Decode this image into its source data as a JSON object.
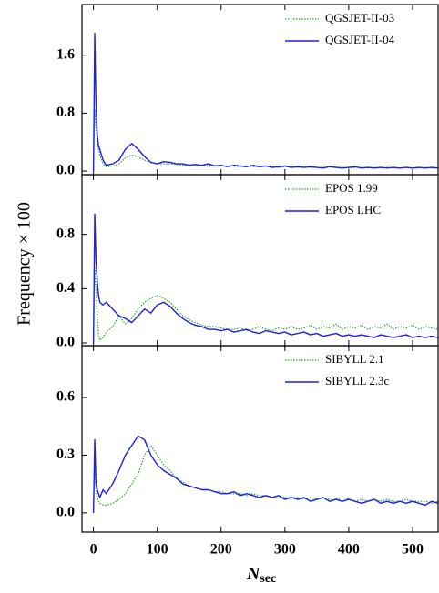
{
  "chart_data": [
    {
      "type": "line",
      "x": [
        0,
        2,
        4,
        6,
        8,
        10,
        15,
        20,
        30,
        40,
        50,
        60,
        70,
        80,
        90,
        100,
        110,
        120,
        130,
        140,
        150,
        160,
        170,
        180,
        190,
        200,
        210,
        220,
        230,
        240,
        250,
        260,
        270,
        280,
        290,
        300,
        310,
        320,
        330,
        340,
        350,
        360,
        370,
        380,
        390,
        400,
        410,
        420,
        430,
        440,
        450,
        460,
        470,
        480,
        490,
        500,
        510,
        520,
        530,
        540
      ],
      "xlim": [
        -18,
        540
      ],
      "ylim": [
        -0.05,
        2.3
      ],
      "yticks": [
        {
          "value": 0,
          "label": "0.0"
        },
        0.8,
        1.6
      ],
      "legend": "upper right",
      "series": [
        {
          "name": "QGSJET-II-03",
          "color": "#2ca02c",
          "style": "dotted",
          "values": [
            0,
            0.85,
            0.6,
            0.4,
            0.3,
            0.22,
            0.1,
            0.06,
            0.07,
            0.1,
            0.18,
            0.22,
            0.2,
            0.15,
            0.12,
            0.1,
            0.1,
            0.1,
            0.09,
            0.08,
            0.09,
            0.08,
            0.08,
            0.07,
            0.08,
            0.07,
            0.07,
            0.07,
            0.06,
            0.07,
            0.06,
            0.06,
            0.07,
            0.06,
            0.05,
            0.06,
            0.06,
            0.05,
            0.06,
            0.05,
            0.05,
            0.05,
            0.06,
            0.05,
            0.05,
            0.04,
            0.05,
            0.05,
            0.04,
            0.05,
            0.04,
            0.05,
            0.04,
            0.04,
            0.05,
            0.04,
            0.04,
            0.05,
            0.04,
            0.04
          ]
        },
        {
          "name": "QGSJET-II-04",
          "color": "#1f1fe0",
          "style": "solid",
          "values": [
            0,
            1.9,
            0.9,
            0.5,
            0.35,
            0.3,
            0.15,
            0.08,
            0.1,
            0.15,
            0.3,
            0.38,
            0.3,
            0.2,
            0.12,
            0.1,
            0.13,
            0.12,
            0.1,
            0.1,
            0.08,
            0.09,
            0.08,
            0.1,
            0.07,
            0.08,
            0.06,
            0.08,
            0.07,
            0.06,
            0.08,
            0.06,
            0.07,
            0.05,
            0.06,
            0.07,
            0.05,
            0.06,
            0.05,
            0.06,
            0.05,
            0.04,
            0.06,
            0.05,
            0.04,
            0.05,
            0.06,
            0.04,
            0.05,
            0.04,
            0.05,
            0.04,
            0.05,
            0.04,
            0.05,
            0.04,
            0.05,
            0.04,
            0.05,
            0.04
          ]
        }
      ]
    },
    {
      "type": "line",
      "ylabel": "Frequency × 100",
      "x": [
        0,
        2,
        4,
        6,
        8,
        10,
        15,
        20,
        30,
        40,
        50,
        60,
        70,
        80,
        90,
        100,
        110,
        120,
        130,
        140,
        150,
        160,
        170,
        180,
        190,
        200,
        210,
        220,
        230,
        240,
        250,
        260,
        270,
        280,
        290,
        300,
        310,
        320,
        330,
        340,
        350,
        360,
        370,
        380,
        390,
        400,
        410,
        420,
        430,
        440,
        450,
        460,
        470,
        480,
        490,
        500,
        510,
        520,
        530,
        540
      ],
      "xlim": [
        -18,
        540
      ],
      "ylim": [
        -0.02,
        1.24
      ],
      "yticks": [
        {
          "value": 0,
          "label": "0.0"
        },
        0.4,
        0.8
      ],
      "legend": "upper right",
      "series": [
        {
          "name": "EPOS 1.99",
          "color": "#2ca02c",
          "style": "dotted",
          "values": [
            0,
            0.55,
            0.4,
            0.2,
            0.05,
            0.02,
            0.04,
            0.08,
            0.12,
            0.2,
            0.14,
            0.18,
            0.25,
            0.3,
            0.33,
            0.35,
            0.33,
            0.3,
            0.25,
            0.2,
            0.17,
            0.15,
            0.13,
            0.12,
            0.12,
            0.11,
            0.1,
            0.1,
            0.11,
            0.09,
            0.1,
            0.12,
            0.1,
            0.09,
            0.11,
            0.1,
            0.12,
            0.1,
            0.11,
            0.13,
            0.1,
            0.12,
            0.11,
            0.14,
            0.1,
            0.12,
            0.11,
            0.13,
            0.1,
            0.12,
            0.11,
            0.14,
            0.1,
            0.12,
            0.11,
            0.13,
            0.1,
            0.12,
            0.11,
            0.1
          ]
        },
        {
          "name": "EPOS LHC",
          "color": "#1f1fe0",
          "style": "solid",
          "values": [
            0,
            0.95,
            0.6,
            0.45,
            0.35,
            0.3,
            0.28,
            0.3,
            0.25,
            0.2,
            0.18,
            0.15,
            0.2,
            0.25,
            0.22,
            0.28,
            0.3,
            0.27,
            0.22,
            0.18,
            0.15,
            0.13,
            0.12,
            0.1,
            0.1,
            0.09,
            0.1,
            0.08,
            0.09,
            0.1,
            0.08,
            0.07,
            0.09,
            0.08,
            0.07,
            0.08,
            0.06,
            0.07,
            0.08,
            0.06,
            0.07,
            0.05,
            0.06,
            0.07,
            0.05,
            0.06,
            0.05,
            0.06,
            0.05,
            0.04,
            0.06,
            0.05,
            0.04,
            0.05,
            0.06,
            0.04,
            0.05,
            0.04,
            0.05,
            0.04
          ]
        }
      ]
    },
    {
      "type": "line",
      "xlabel": "N",
      "xlabel_sub": "sec",
      "x": [
        0,
        2,
        4,
        6,
        8,
        10,
        15,
        20,
        30,
        40,
        50,
        60,
        70,
        80,
        90,
        100,
        110,
        120,
        130,
        140,
        150,
        160,
        170,
        180,
        190,
        200,
        210,
        220,
        230,
        240,
        250,
        260,
        270,
        280,
        290,
        300,
        310,
        320,
        330,
        340,
        350,
        360,
        370,
        380,
        390,
        400,
        410,
        420,
        430,
        440,
        450,
        460,
        470,
        480,
        490,
        500,
        510,
        520,
        530,
        540
      ],
      "xlim": [
        -18,
        540
      ],
      "ylim": [
        -0.1,
        0.87
      ],
      "xticks": [
        0,
        100,
        200,
        300,
        400,
        500
      ],
      "yticks": [
        {
          "value": 0,
          "label": "0.0"
        },
        0.3,
        0.6
      ],
      "legend": "upper right",
      "series": [
        {
          "name": "SIBYLL 2.1",
          "color": "#2ca02c",
          "style": "dotted",
          "values": [
            0,
            0.25,
            0.12,
            0.08,
            0.06,
            0.05,
            0.04,
            0.04,
            0.05,
            0.07,
            0.1,
            0.15,
            0.2,
            0.3,
            0.35,
            0.3,
            0.25,
            0.22,
            0.18,
            0.16,
            0.14,
            0.13,
            0.12,
            0.12,
            0.11,
            0.11,
            0.1,
            0.1,
            0.1,
            0.09,
            0.1,
            0.09,
            0.09,
            0.08,
            0.09,
            0.08,
            0.08,
            0.08,
            0.07,
            0.08,
            0.07,
            0.08,
            0.07,
            0.07,
            0.08,
            0.07,
            0.06,
            0.07,
            0.06,
            0.07,
            0.06,
            0.07,
            0.06,
            0.06,
            0.07,
            0.06,
            0.06,
            0.06,
            0.05,
            0.06
          ]
        },
        {
          "name": "SIBYLL 2.3c",
          "color": "#1f1fe0",
          "style": "solid",
          "values": [
            0,
            0.38,
            0.15,
            0.12,
            0.1,
            0.08,
            0.12,
            0.1,
            0.15,
            0.22,
            0.3,
            0.35,
            0.4,
            0.38,
            0.3,
            0.25,
            0.22,
            0.2,
            0.18,
            0.15,
            0.14,
            0.13,
            0.12,
            0.12,
            0.11,
            0.1,
            0.1,
            0.11,
            0.09,
            0.1,
            0.09,
            0.08,
            0.09,
            0.08,
            0.09,
            0.07,
            0.08,
            0.07,
            0.08,
            0.06,
            0.07,
            0.08,
            0.06,
            0.07,
            0.06,
            0.07,
            0.06,
            0.05,
            0.06,
            0.07,
            0.05,
            0.06,
            0.05,
            0.06,
            0.05,
            0.06,
            0.05,
            0.04,
            0.06,
            0.05
          ]
        }
      ]
    }
  ]
}
